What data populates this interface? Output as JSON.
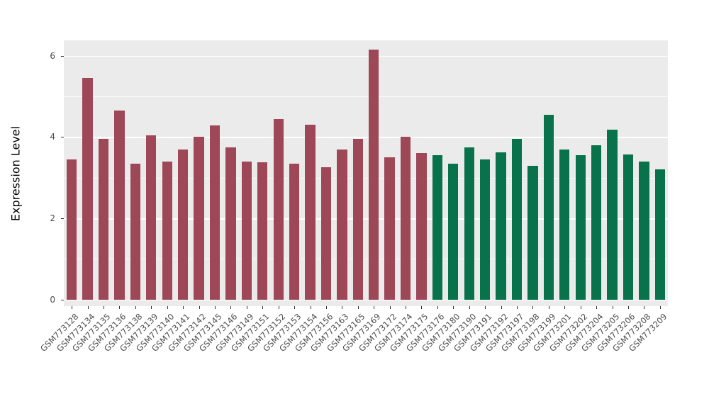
{
  "chart_data": {
    "type": "bar",
    "title": "",
    "xlabel": "",
    "ylabel": "Expression Level",
    "ylim": [
      0,
      6.3
    ],
    "yticks_major": [
      0,
      2,
      4,
      6
    ],
    "yticks_minor": [
      1,
      3,
      5
    ],
    "legend": "none",
    "grid": "on",
    "categories": [
      "GSM773128",
      "GSM773134",
      "GSM773135",
      "GSM773136",
      "GSM773138",
      "GSM773139",
      "GSM773140",
      "GSM773141",
      "GSM773142",
      "GSM773145",
      "GSM773146",
      "GSM773149",
      "GSM773151",
      "GSM773152",
      "GSM773153",
      "GSM773154",
      "GSM773156",
      "GSM773163",
      "GSM773165",
      "GSM773169",
      "GSM773172",
      "GSM773174",
      "GSM773175",
      "GSM773176",
      "GSM773180",
      "GSM773190",
      "GSM773191",
      "GSM773192",
      "GSM773197",
      "GSM773198",
      "GSM773199",
      "GSM773201",
      "GSM773202",
      "GSM773204",
      "GSM773205",
      "GSM773206",
      "GSM773208",
      "GSM773209"
    ],
    "values": [
      3.45,
      5.45,
      3.95,
      4.65,
      3.35,
      4.05,
      3.4,
      3.7,
      4.0,
      4.28,
      3.75,
      3.4,
      3.38,
      4.45,
      3.35,
      4.3,
      3.25,
      3.7,
      3.95,
      6.15,
      3.5,
      4.0,
      3.6,
      3.55,
      3.35,
      3.75,
      3.45,
      3.62,
      3.95,
      3.3,
      4.55,
      3.7,
      3.55,
      3.8,
      4.18,
      3.57,
      3.4,
      3.2
    ],
    "groups": [
      "A",
      "A",
      "A",
      "A",
      "A",
      "A",
      "A",
      "A",
      "A",
      "A",
      "A",
      "A",
      "A",
      "A",
      "A",
      "A",
      "A",
      "A",
      "A",
      "A",
      "A",
      "A",
      "A",
      "B",
      "B",
      "B",
      "B",
      "B",
      "B",
      "B",
      "B",
      "B",
      "B",
      "B",
      "B",
      "B",
      "B",
      "B"
    ],
    "group_colors": {
      "A": "#9E4757",
      "B": "#07724B"
    },
    "colors": {
      "panel_background": "#EBEBEB",
      "gridline": "#FFFFFF",
      "tick_text": "#4D4D4D",
      "axis_label_text": "#000000",
      "figure_background": "#FFFFFF"
    }
  }
}
